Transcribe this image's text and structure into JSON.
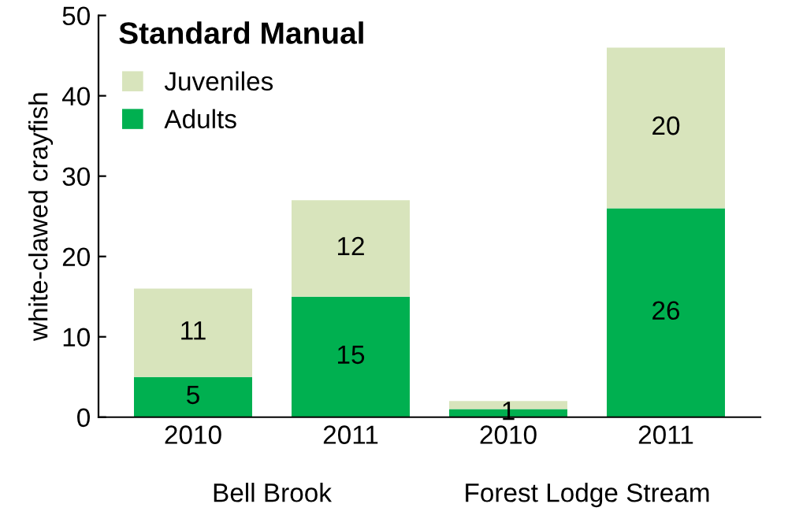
{
  "chart_data": {
    "type": "bar",
    "title": "Standard Manual",
    "ylabel": "white-clawed crayfish",
    "categories": [
      "2010",
      "2011",
      "2010",
      "2011"
    ],
    "annotations": [
      "Bell Brook",
      "Forest Lodge Stream"
    ],
    "stacked": true,
    "series": [
      {
        "name": "Adults",
        "color": "#00b050",
        "values": [
          5,
          15,
          1,
          26
        ],
        "value_labels": [
          "5",
          "15",
          "1",
          "26"
        ]
      },
      {
        "name": "Juveniles",
        "color": "#d8e4bc",
        "values": [
          11,
          12,
          1,
          20
        ],
        "value_labels": [
          "11",
          "12",
          null,
          "20"
        ]
      }
    ],
    "ylim": [
      0,
      50
    ],
    "yticks": [
      0,
      10,
      20,
      30,
      40,
      50
    ],
    "grid": false,
    "legend": "top left"
  }
}
